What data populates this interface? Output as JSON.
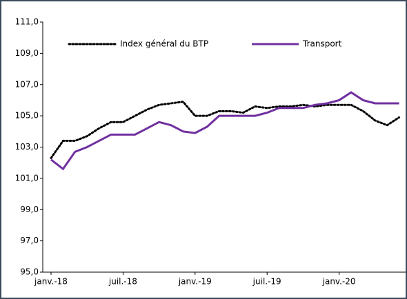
{
  "chart_data": {
    "type": "line",
    "categories": [
      "janv.-18",
      null,
      null,
      null,
      null,
      null,
      "juil.-18",
      null,
      null,
      null,
      null,
      null,
      "janv.-19",
      null,
      null,
      null,
      null,
      null,
      "juil.-19",
      null,
      null,
      null,
      null,
      null,
      "janv.-20",
      null,
      null,
      null,
      null,
      null
    ],
    "series": [
      {
        "name": "Index général du BTP",
        "color": "#000000",
        "dashed": true,
        "values": [
          102.3,
          103.4,
          103.4,
          103.7,
          104.2,
          104.6,
          104.6,
          105.0,
          105.4,
          105.7,
          105.8,
          105.9,
          105.0,
          105.0,
          105.3,
          105.3,
          105.2,
          105.6,
          105.5,
          105.6,
          105.6,
          105.7,
          105.6,
          105.7,
          105.7,
          105.7,
          105.3,
          104.7,
          104.4,
          104.9
        ]
      },
      {
        "name": "Transport",
        "color": "#7030a0",
        "dashed": false,
        "values": [
          102.2,
          101.6,
          102.7,
          103.0,
          103.4,
          103.8,
          103.8,
          103.8,
          104.2,
          104.6,
          104.4,
          104.0,
          103.9,
          104.3,
          105.0,
          105.0,
          105.0,
          105.0,
          105.2,
          105.5,
          105.5,
          105.5,
          105.7,
          105.8,
          106.0,
          106.5,
          106.0,
          105.8,
          105.8,
          105.8
        ]
      }
    ],
    "ylim": [
      95,
      111
    ],
    "yticks": [
      {
        "value": 95,
        "label": "95,0"
      },
      {
        "value": 97,
        "label": "97,0"
      },
      {
        "value": 99,
        "label": "99,0"
      },
      {
        "value": 101,
        "label": "101,0"
      },
      {
        "value": 103,
        "label": "103,0"
      },
      {
        "value": 105,
        "label": "105,0"
      },
      {
        "value": 107,
        "label": "107,0"
      },
      {
        "value": 109,
        "label": "109,0"
      },
      {
        "value": 111,
        "label": "111,0"
      }
    ],
    "grid": false,
    "legend": "top"
  }
}
